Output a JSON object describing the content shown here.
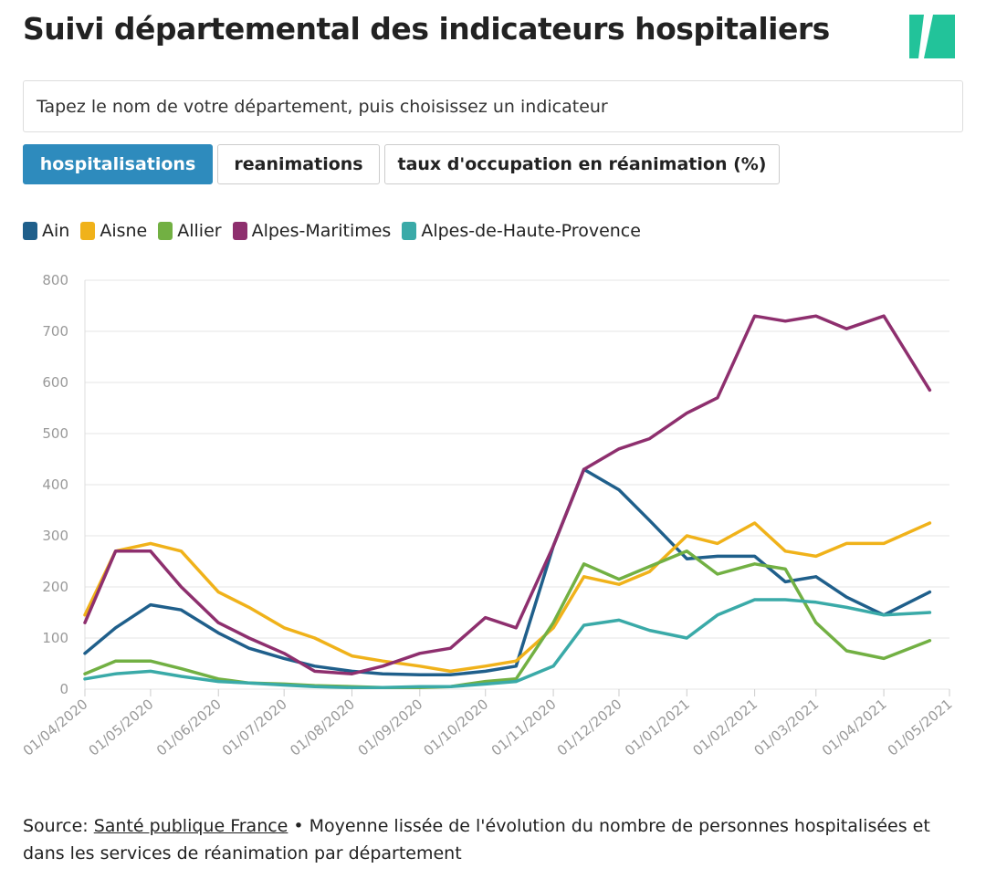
{
  "header": {
    "title": "Suivi départemental des indicateurs hospitaliers"
  },
  "search": {
    "placeholder": "Tapez le nom de votre département, puis choisissez un indicateur"
  },
  "tabs": [
    "hospitalisations",
    "reanimations",
    "taux d'occupation en réanimation (%)"
  ],
  "chart_data": {
    "type": "line",
    "x": [
      "2020-04-01",
      "2020-04-15",
      "2020-05-01",
      "2020-05-15",
      "2020-06-01",
      "2020-06-15",
      "2020-07-01",
      "2020-07-15",
      "2020-08-01",
      "2020-08-15",
      "2020-09-01",
      "2020-09-15",
      "2020-10-01",
      "2020-10-15",
      "2020-11-01",
      "2020-11-15",
      "2020-12-01",
      "2020-12-15",
      "2021-01-01",
      "2021-01-15",
      "2021-02-01",
      "2021-02-15",
      "2021-03-01",
      "2021-03-15",
      "2021-04-01",
      "2021-04-22"
    ],
    "series": [
      {
        "name": "Ain",
        "color": "#1f5f8b",
        "values": [
          70,
          120,
          165,
          155,
          110,
          80,
          60,
          45,
          35,
          30,
          28,
          28,
          35,
          45,
          280,
          430,
          390,
          330,
          255,
          260,
          260,
          210,
          220,
          180,
          145,
          190
        ]
      },
      {
        "name": "Aisne",
        "color": "#f0b21a",
        "values": [
          145,
          270,
          285,
          270,
          190,
          160,
          120,
          100,
          65,
          55,
          45,
          35,
          45,
          55,
          120,
          220,
          205,
          230,
          300,
          285,
          325,
          270,
          260,
          285,
          285,
          325
        ]
      },
      {
        "name": "Allier",
        "color": "#72b043",
        "values": [
          30,
          55,
          55,
          40,
          20,
          12,
          10,
          7,
          5,
          3,
          3,
          5,
          15,
          20,
          130,
          245,
          215,
          240,
          270,
          225,
          245,
          235,
          130,
          75,
          60,
          95
        ]
      },
      {
        "name": "Alpes-Maritimes",
        "color": "#8e2f6e",
        "values": [
          130,
          270,
          270,
          200,
          130,
          100,
          70,
          35,
          30,
          45,
          70,
          80,
          140,
          120,
          280,
          430,
          470,
          490,
          540,
          570,
          730,
          720,
          730,
          705,
          730,
          585
        ]
      },
      {
        "name": "Alpes-de-Haute-Provence",
        "color": "#3aaaa8",
        "values": [
          20,
          30,
          35,
          25,
          15,
          12,
          8,
          5,
          3,
          3,
          5,
          5,
          10,
          15,
          45,
          125,
          135,
          115,
          100,
          145,
          175,
          175,
          170,
          160,
          145,
          150
        ]
      }
    ],
    "xlim": [
      "2020-04-01",
      "2021-05-01"
    ],
    "xticks": [
      {
        "value": "2020-04-01",
        "label": "01/04/2020"
      },
      {
        "value": "2020-05-01",
        "label": "01/05/2020"
      },
      {
        "value": "2020-06-01",
        "label": "01/06/2020"
      },
      {
        "value": "2020-07-01",
        "label": "01/07/2020"
      },
      {
        "value": "2020-08-01",
        "label": "01/08/2020"
      },
      {
        "value": "2020-09-01",
        "label": "01/09/2020"
      },
      {
        "value": "2020-10-01",
        "label": "01/10/2020"
      },
      {
        "value": "2020-11-01",
        "label": "01/11/2020"
      },
      {
        "value": "2020-12-01",
        "label": "01/12/2020"
      },
      {
        "value": "2021-01-01",
        "label": "01/01/2021"
      },
      {
        "value": "2021-02-01",
        "label": "01/02/2021"
      },
      {
        "value": "2021-03-01",
        "label": "01/03/2021"
      },
      {
        "value": "2021-04-01",
        "label": "01/04/2021"
      },
      {
        "value": "2021-05-01",
        "label": "01/05/2021"
      }
    ],
    "ylim": [
      0,
      800
    ],
    "yticks": [
      0,
      100,
      200,
      300,
      400,
      500,
      600,
      700,
      800
    ],
    "grid": true
  },
  "footer": {
    "source_label": "Source:",
    "source_link": "Santé publique France",
    "note": "• Moyenne lissée de l'évolution du nombre de personnes hospitalisées et dans les services de réanimation par département"
  }
}
